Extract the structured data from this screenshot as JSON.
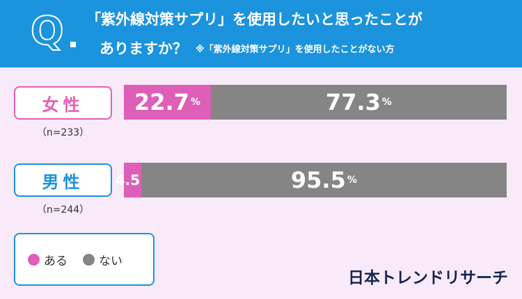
{
  "question": {
    "q_mark": "Q",
    "line1": "「紫外線対策サプリ」を使用したいと思ったことが",
    "line2": "ありますか？",
    "note": "※「紫外線対策サプリ」を使用したことがない方"
  },
  "chart_data": {
    "type": "bar",
    "orientation": "horizontal-stacked-100",
    "categories": [
      "女性",
      "男性"
    ],
    "sample_sizes": [
      "（n=233）",
      "（n=244）"
    ],
    "series": [
      {
        "name": "ある",
        "values": [
          22.7,
          4.5
        ],
        "labels": [
          "22.7",
          "4.5"
        ],
        "color": "#dd5fb8"
      },
      {
        "name": "ない",
        "values": [
          77.3,
          95.5
        ],
        "labels": [
          "77.3",
          "95.5"
        ],
        "color": "#858585"
      }
    ],
    "unit": "%",
    "xlim": [
      0,
      100
    ],
    "legend_position": "bottom-left"
  },
  "brand": "日本トレンドリサーチ"
}
